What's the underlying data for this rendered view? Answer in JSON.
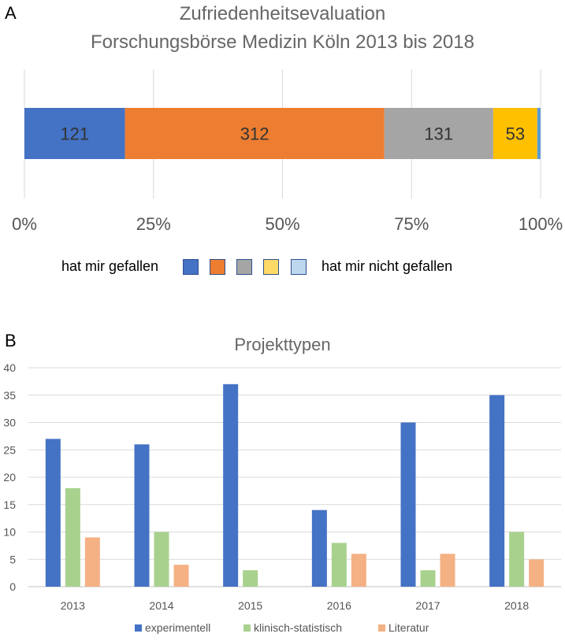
{
  "panels": {
    "a_label": "A",
    "b_label": "B"
  },
  "chart_data": [
    {
      "type": "bar",
      "orientation": "horizontal-stacked-percent",
      "title_line1": "Zufriedenheitsevaluation",
      "title_line2": "Forschungsbörse Medizin Köln 2013 bis 2018",
      "segments": [
        {
          "value": 121,
          "label": "121",
          "color": "#4472C4"
        },
        {
          "value": 312,
          "label": "312",
          "color": "#ED7D31"
        },
        {
          "value": 131,
          "label": "131",
          "color": "#A5A5A5"
        },
        {
          "value": 53,
          "label": "53",
          "color": "#FFC000"
        },
        {
          "value": 4,
          "label": "",
          "color": "#5B9BD5"
        }
      ],
      "xticks": [
        "0%",
        "25%",
        "50%",
        "75%",
        "100%"
      ],
      "xlim": [
        0,
        100
      ],
      "legend": {
        "left_text": "hat mir gefallen",
        "right_text": "hat mir nicht gefallen",
        "swatches": [
          "#4472C4",
          "#ED7D31",
          "#A5A5A5",
          "#FFD966",
          "#BDD7EE"
        ]
      }
    },
    {
      "type": "bar",
      "title": "Projekttypen",
      "categories": [
        "2013",
        "2014",
        "2015",
        "2016",
        "2017",
        "2018"
      ],
      "series": [
        {
          "name": "experimentell",
          "color": "#4472C4",
          "values": [
            27,
            26,
            37,
            14,
            30,
            35
          ]
        },
        {
          "name": "klinisch-statistisch",
          "color": "#A9D18E",
          "values": [
            18,
            10,
            3,
            8,
            3,
            10
          ]
        },
        {
          "name": "Literatur",
          "color": "#F4B183",
          "values": [
            9,
            4,
            0,
            6,
            6,
            5
          ]
        }
      ],
      "yticks": [
        "0",
        "5",
        "10",
        "15",
        "20",
        "25",
        "30",
        "35",
        "40"
      ],
      "ylim": [
        0,
        40
      ],
      "grid": true,
      "legend_position": "bottom"
    }
  ]
}
